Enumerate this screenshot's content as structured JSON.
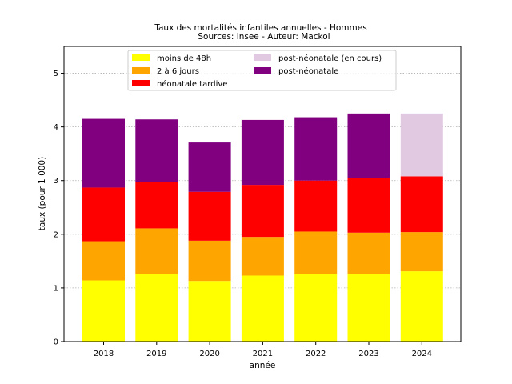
{
  "chart_data": {
    "type": "bar",
    "stacked": true,
    "title": "Taux des mortalités infantiles annuelles - Hommes",
    "subtitle": "Sources: insee - Auteur: Mackoi",
    "xlabel": "année",
    "ylabel": "taux (pour 1 000)",
    "ylim": [
      0,
      5.5
    ],
    "yticks": [
      0,
      1,
      2,
      3,
      4,
      5
    ],
    "grid": "y-dotted",
    "legend_position": "top-center",
    "categories": [
      "2018",
      "2019",
      "2020",
      "2021",
      "2022",
      "2023",
      "2024"
    ],
    "series": [
      {
        "name": "moins de 48h",
        "color": "#ffff00",
        "values": [
          1.14,
          1.26,
          1.13,
          1.23,
          1.26,
          1.26,
          1.31
        ]
      },
      {
        "name": "2 à 6 jours",
        "color": "#ffa500",
        "values": [
          0.73,
          0.85,
          0.75,
          0.72,
          0.79,
          0.77,
          0.73
        ]
      },
      {
        "name": "néonatale tardive",
        "color": "#ff0000",
        "values": [
          1.0,
          0.87,
          0.91,
          0.97,
          0.95,
          1.02,
          1.04
        ]
      },
      {
        "name": "post-néonatale",
        "color": "#800080",
        "values": [
          1.28,
          1.16,
          0.92,
          1.21,
          1.18,
          1.2,
          null
        ]
      },
      {
        "name": "post-néonatale (en cours)",
        "color": "#e2c9e2",
        "values": [
          null,
          null,
          null,
          null,
          null,
          null,
          1.17
        ]
      }
    ],
    "legend_order": [
      "moins de 48h",
      "2 à 6 jours",
      "néonatale tardive",
      "post-néonatale (en cours)",
      "post-néonatale"
    ]
  }
}
